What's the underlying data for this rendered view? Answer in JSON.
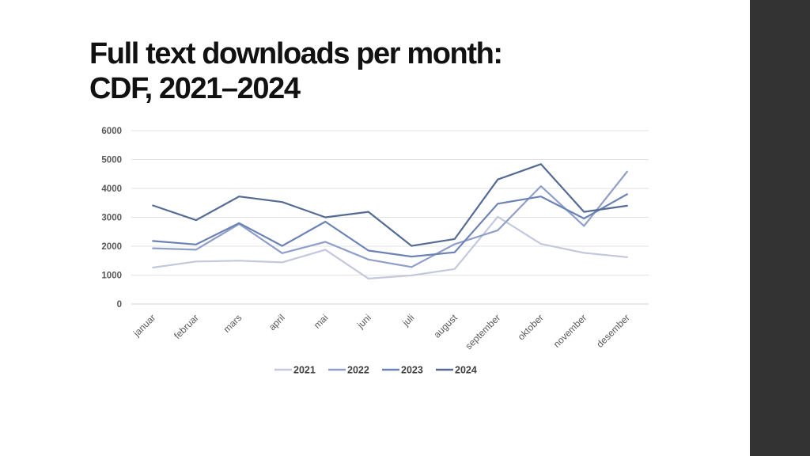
{
  "slide": {
    "title_line1": "Full text downloads per month:",
    "title_line2": "CDF, 2021–2024"
  },
  "chart_data": {
    "type": "line",
    "categories": [
      "januar",
      "februar",
      "mars",
      "april",
      "mai",
      "juni",
      "juli",
      "august",
      "september",
      "oktober",
      "november",
      "desember"
    ],
    "series": [
      {
        "name": "2021",
        "color": "#c3c8dc",
        "values": [
          1260,
          1470,
          1500,
          1440,
          1880,
          880,
          990,
          1210,
          3020,
          2080,
          1770,
          1620
        ]
      },
      {
        "name": "2022",
        "color": "#8f9fc9",
        "values": [
          1930,
          1880,
          2770,
          1760,
          2150,
          1540,
          1280,
          2070,
          2550,
          4080,
          2700,
          4580
        ]
      },
      {
        "name": "2023",
        "color": "#6b82b4",
        "values": [
          2180,
          2060,
          2800,
          2010,
          2850,
          1850,
          1640,
          1790,
          3470,
          3720,
          2960,
          3800
        ]
      },
      {
        "name": "2024",
        "color": "#556b93",
        "values": [
          3410,
          2900,
          3720,
          3530,
          3000,
          3190,
          2010,
          2250,
          4310,
          4840,
          3190,
          3400
        ]
      }
    ],
    "ylim": [
      0,
      6000
    ],
    "yticks": [
      "0",
      "1000",
      "2000",
      "3000",
      "4000",
      "5000",
      "6000"
    ],
    "grid": true,
    "legend": "bottom"
  }
}
